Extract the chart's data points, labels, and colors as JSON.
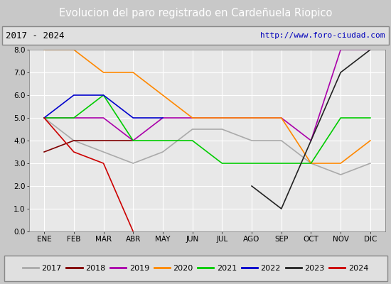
{
  "title": "Evolucion del paro registrado en Cardeñuela Riopico",
  "subtitle_left": "2017 - 2024",
  "subtitle_right": "http://www.foro-ciudad.com",
  "months": [
    "ENE",
    "FEB",
    "MAR",
    "ABR",
    "MAY",
    "JUN",
    "JUL",
    "AGO",
    "SEP",
    "OCT",
    "NOV",
    "DIC"
  ],
  "ylim": [
    0.0,
    8.0
  ],
  "yticks": [
    0.0,
    1.0,
    2.0,
    3.0,
    4.0,
    5.0,
    6.0,
    7.0,
    8.0
  ],
  "series": {
    "2017": {
      "color": "#aaaaaa",
      "data": [
        5.0,
        4.0,
        3.5,
        3.0,
        3.5,
        4.5,
        4.5,
        4.0,
        4.0,
        3.0,
        2.5,
        3.0
      ]
    },
    "2018": {
      "color": "#800000",
      "data": [
        3.5,
        4.0,
        4.0,
        4.0,
        null,
        null,
        null,
        null,
        null,
        null,
        null,
        null
      ]
    },
    "2019": {
      "color": "#aa00aa",
      "data": [
        5.0,
        5.0,
        5.0,
        4.0,
        5.0,
        5.0,
        5.0,
        5.0,
        5.0,
        4.0,
        8.0,
        8.0
      ]
    },
    "2020": {
      "color": "#ff8800",
      "data": [
        8.0,
        8.0,
        7.0,
        7.0,
        6.0,
        5.0,
        5.0,
        5.0,
        5.0,
        3.0,
        3.0,
        4.0
      ]
    },
    "2021": {
      "color": "#00cc00",
      "data": [
        5.0,
        5.0,
        6.0,
        4.0,
        4.0,
        4.0,
        3.0,
        3.0,
        3.0,
        3.0,
        5.0,
        5.0
      ]
    },
    "2022": {
      "color": "#0000cc",
      "data": [
        5.0,
        6.0,
        6.0,
        5.0,
        5.0,
        null,
        null,
        null,
        null,
        null,
        null,
        null
      ]
    },
    "2023": {
      "color": "#222222",
      "data": [
        null,
        null,
        null,
        null,
        null,
        null,
        null,
        2.0,
        1.0,
        4.0,
        7.0,
        8.0
      ]
    },
    "2024": {
      "color": "#cc0000",
      "data": [
        5.0,
        3.5,
        3.0,
        0.0,
        null,
        null,
        null,
        null,
        null,
        null,
        null,
        null
      ]
    }
  },
  "legend_order": [
    "2017",
    "2018",
    "2019",
    "2020",
    "2021",
    "2022",
    "2023",
    "2024"
  ],
  "bg_title": "#3a7abf",
  "bg_subtitle": "#e0e0e0",
  "bg_plot": "#e8e8e8",
  "title_color": "#ffffff",
  "grid_color": "#ffffff",
  "fig_bg": "#c8c8c8"
}
